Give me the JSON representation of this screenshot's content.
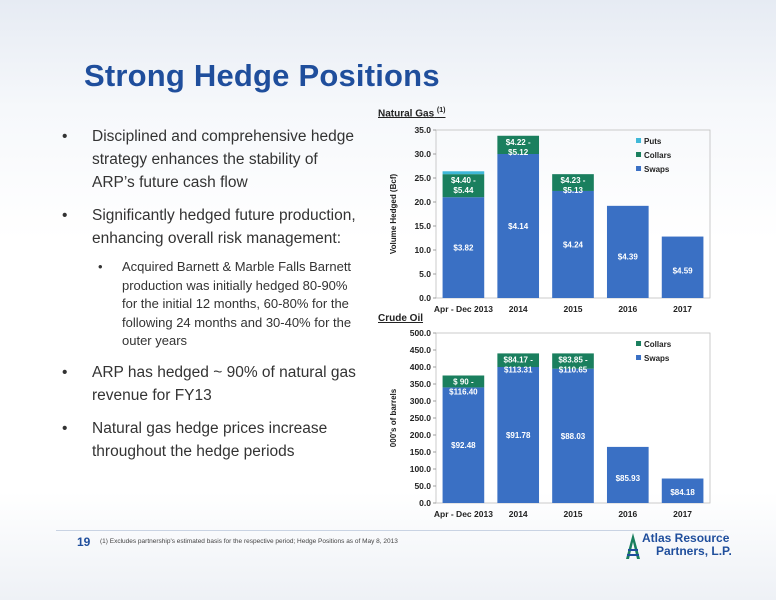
{
  "slide": {
    "title": "Strong Hedge Positions",
    "page_number": "19",
    "footnote": "(1)    Excludes partnership's estimated basis for the respective period; Hedge Positions as of May 8, 2013",
    "logo_line1": "Atlas Resource",
    "logo_line2": "Partners, L.P."
  },
  "bullets": [
    {
      "level": 1,
      "text": "Disciplined and comprehensive hedge strategy enhances the stability of ARP’s future cash flow"
    },
    {
      "level": 1,
      "text": "Significantly hedged future production, enhancing overall risk management:"
    },
    {
      "level": 2,
      "text": "Acquired Barnett & Marble Falls Barnett production was initially hedged  80-90% for the initial 12 months, 60-80% for the following 24 months and 30-40% for the outer years"
    },
    {
      "level": 1,
      "text": "ARP has hedged ~ 90% of natural gas revenue for FY13"
    },
    {
      "level": 1,
      "text": "Natural gas hedge prices increase throughout the hedge periods"
    }
  ],
  "bullet_symbol": "•",
  "colors": {
    "title": "#1f4e9c",
    "swaps": "#3a70c4",
    "collars": "#1a7f5e",
    "puts": "#3fb8d8"
  },
  "chart_data": [
    {
      "type": "bar",
      "stacked": true,
      "title": "Natural Gas",
      "title_superscript": "(1)",
      "ylabel": "Volume Hedged (Bcf)",
      "ylim": [
        0,
        35
      ],
      "yticks": [
        "0.0",
        "5.0",
        "10.0",
        "15.0",
        "20.0",
        "25.0",
        "30.0",
        "35.0"
      ],
      "categories": [
        "Apr - Dec 2013",
        "2014",
        "2015",
        "2016",
        "2017"
      ],
      "legend_position": "top-right",
      "series": [
        {
          "name": "Swaps",
          "color": "#3a70c4",
          "values": [
            21.0,
            30.0,
            22.3,
            19.2,
            12.8
          ],
          "labels": [
            "$3.82",
            "$4.14",
            "$4.24",
            "$4.39",
            "$4.59"
          ]
        },
        {
          "name": "Collars",
          "color": "#1a7f5e",
          "values": [
            4.8,
            3.8,
            3.5,
            0,
            0
          ],
          "labels": [
            "$4.40 - $5.44",
            "$4.22 - $5.12",
            "$4.23 - $5.13",
            "",
            ""
          ]
        },
        {
          "name": "Puts",
          "color": "#3fb8d8",
          "values": [
            0.6,
            0,
            0,
            0,
            0
          ],
          "labels": [
            "",
            "",
            "",
            "",
            ""
          ]
        }
      ],
      "legend_order": [
        "Puts",
        "Collars",
        "Swaps"
      ]
    },
    {
      "type": "bar",
      "stacked": true,
      "title": "Crude Oil",
      "ylabel": "000's of barrels",
      "ylim": [
        0,
        500
      ],
      "yticks": [
        "0.0",
        "50.0",
        "100.0",
        "150.0",
        "200.0",
        "250.0",
        "300.0",
        "350.0",
        "400.0",
        "450.0",
        "500.0"
      ],
      "categories": [
        "Apr - Dec 2013",
        "2014",
        "2015",
        "2016",
        "2017"
      ],
      "legend_position": "top-right",
      "series": [
        {
          "name": "Swaps",
          "color": "#3a70c4",
          "values": [
            340,
            400,
            395,
            165,
            72
          ],
          "labels": [
            "$92.48",
            "$91.78",
            "$88.03",
            "$85.93",
            "$84.18"
          ]
        },
        {
          "name": "Collars",
          "color": "#1a7f5e",
          "values": [
            35,
            40,
            45,
            0,
            0
          ],
          "labels": [
            "$ 90 - $116.40",
            "$84.17 - $113.31",
            "$83.85 - $110.65",
            "",
            ""
          ]
        }
      ],
      "legend_order": [
        "Collars",
        "Swaps"
      ]
    }
  ]
}
